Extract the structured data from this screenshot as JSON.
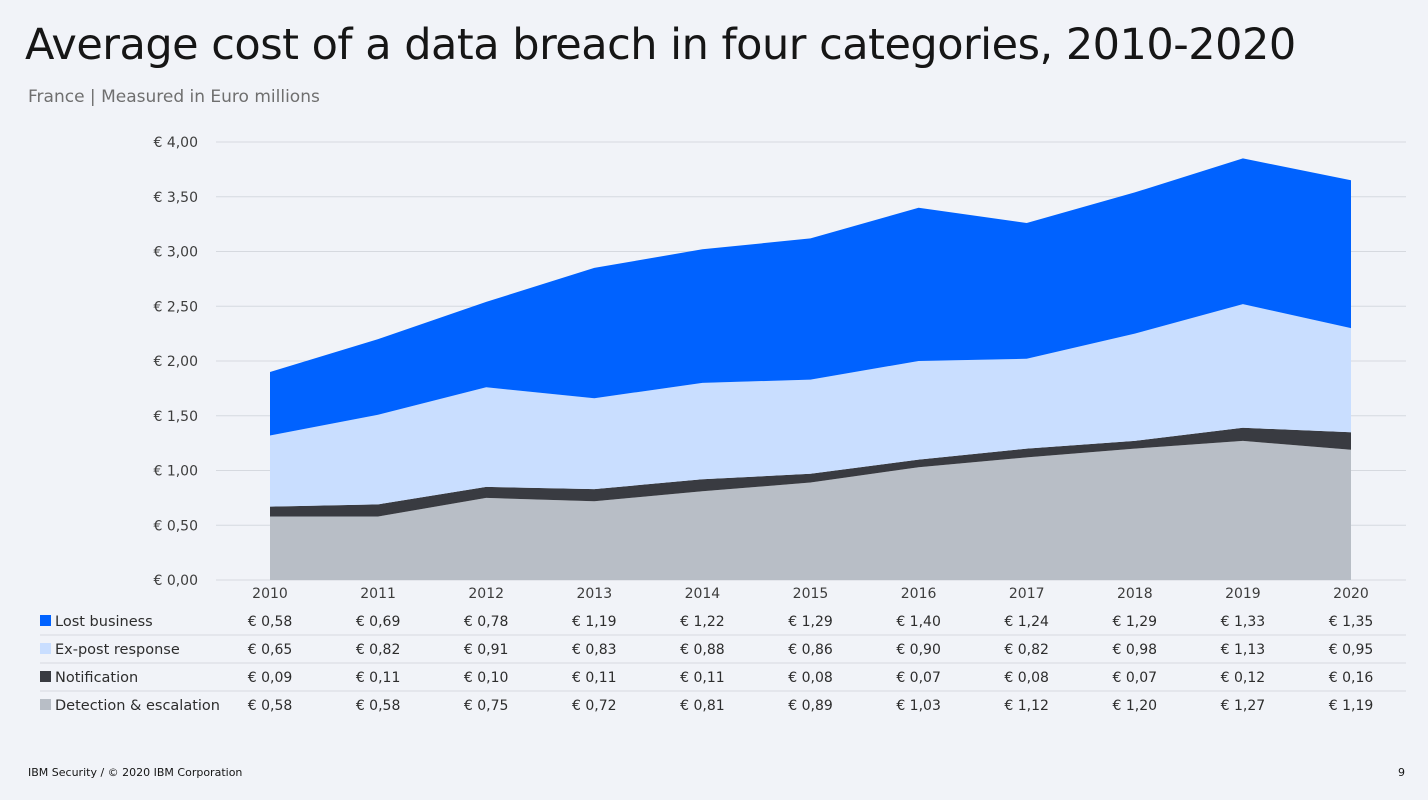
{
  "slide": {
    "title": "Average cost of a data breach in four categories, 2010-2020",
    "subtitle": "France | Measured in Euro millions",
    "footer": "IBM Security / © 2020 IBM Corporation",
    "page_number": "9"
  },
  "chart_data": {
    "type": "area",
    "stacked": true,
    "title": "Average cost of a data breach in four categories, 2010-2020",
    "subtitle": "France | Measured in Euro millions",
    "categories": [
      "2010",
      "2011",
      "2012",
      "2013",
      "2014",
      "2015",
      "2016",
      "2017",
      "2018",
      "2019",
      "2020"
    ],
    "ylim": [
      0,
      4
    ],
    "y_ticks": [
      0,
      0.5,
      1,
      1.5,
      2,
      2.5,
      3,
      3.5,
      4
    ],
    "y_tick_labels": [
      "€ 0,00",
      "€ 0,50",
      "€ 1,00",
      "€ 1,50",
      "€ 2,00",
      "€ 2,50",
      "€ 3,00",
      "€ 3,50",
      "€ 4,00"
    ],
    "grid": true,
    "legend_placement": "bottom-left data table",
    "series": [
      {
        "name": "Lost business",
        "color": "#0062ff",
        "values": [
          0.58,
          0.69,
          0.78,
          1.19,
          1.22,
          1.29,
          1.4,
          1.24,
          1.29,
          1.33,
          1.35
        ],
        "labels": [
          "€ 0,58",
          "€ 0,69",
          "€ 0,78",
          "€ 1,19",
          "€ 1,22",
          "€ 1,29",
          "€ 1,40",
          "€ 1,24",
          "€ 1,29",
          "€ 1,33",
          "€ 1,35"
        ]
      },
      {
        "name": "Ex-post response",
        "color": "#c9deff",
        "values": [
          0.65,
          0.82,
          0.91,
          0.83,
          0.88,
          0.86,
          0.9,
          0.82,
          0.98,
          1.13,
          0.95
        ],
        "labels": [
          "€ 0,65",
          "€ 0,82",
          "€ 0,91",
          "€ 0,83",
          "€ 0,88",
          "€ 0,86",
          "€ 0,90",
          "€ 0,82",
          "€ 0,98",
          "€ 1,13",
          "€ 0,95"
        ]
      },
      {
        "name": "Notification",
        "color": "#393b41",
        "values": [
          0.09,
          0.11,
          0.1,
          0.11,
          0.11,
          0.08,
          0.07,
          0.08,
          0.07,
          0.12,
          0.16
        ],
        "labels": [
          "€ 0,09",
          "€ 0,11",
          "€ 0,10",
          "€ 0,11",
          "€ 0,11",
          "€ 0,08",
          "€ 0,07",
          "€ 0,08",
          "€ 0,07",
          "€ 0,12",
          "€ 0,16"
        ]
      },
      {
        "name": "Detection & escalation",
        "color": "#b8bec6",
        "values": [
          0.58,
          0.58,
          0.75,
          0.72,
          0.81,
          0.89,
          1.03,
          1.12,
          1.2,
          1.27,
          1.19
        ],
        "labels": [
          "€ 0,58",
          "€ 0,58",
          "€ 0,75",
          "€ 0,72",
          "€ 0,81",
          "€ 0,89",
          "€ 1,03",
          "€ 1,12",
          "€ 1,20",
          "€ 1,27",
          "€ 1,19"
        ]
      }
    ],
    "stack_order_bottom_to_top": [
      "Detection & escalation",
      "Notification",
      "Ex-post response",
      "Lost business"
    ]
  }
}
